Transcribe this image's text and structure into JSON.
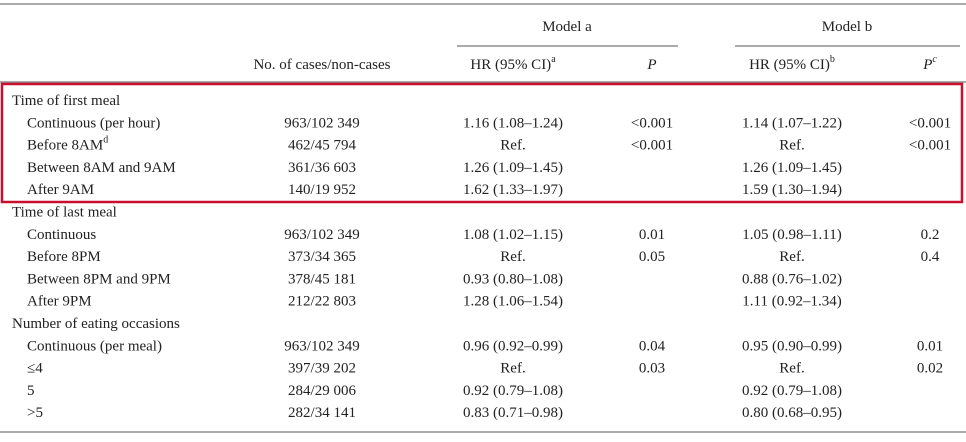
{
  "header": {
    "groups": [
      "Model a",
      "Model b"
    ],
    "columns": [
      {
        "text": "No. of cases/non-cases"
      },
      {
        "text": "HR (95% CI)",
        "sup": "a"
      },
      {
        "text": "P"
      },
      {
        "text": "HR (95% CI)",
        "sup": "b"
      },
      {
        "text": "P",
        "sup": "c"
      }
    ]
  },
  "sections": [
    {
      "label": "Time of first meal",
      "rows": [
        {
          "label": "Continuous (per hour)",
          "cells": [
            "963/102 349",
            "1.16 (1.08–1.24)",
            "<0.001",
            "1.14 (1.07–1.22)",
            "<0.001"
          ]
        },
        {
          "label": "Before 8AM",
          "label_sup": "d",
          "cells": [
            "462/45 794",
            "Ref.",
            "<0.001",
            "Ref.",
            "<0.001"
          ]
        },
        {
          "label": "Between 8AM and 9AM",
          "cells": [
            "361/36 603",
            "1.26 (1.09–1.45)",
            null,
            "1.26 (1.09–1.45)",
            null
          ]
        },
        {
          "label": "After 9AM",
          "cells": [
            "140/19 952",
            "1.62 (1.33–1.97)",
            null,
            "1.59 (1.30–1.94)",
            null
          ]
        }
      ]
    },
    {
      "label": "Time of last meal",
      "rows": [
        {
          "label": "Continuous",
          "cells": [
            "963/102 349",
            "1.08 (1.02–1.15)",
            "0.01",
            "1.05 (0.98–1.11)",
            "0.2"
          ]
        },
        {
          "label": "Before 8PM",
          "cells": [
            "373/34 365",
            "Ref.",
            "0.05",
            "Ref.",
            "0.4"
          ]
        },
        {
          "label": "Between 8PM and 9PM",
          "cells": [
            "378/45 181",
            "0.93 (0.80–1.08)",
            null,
            "0.88 (0.76–1.02)",
            null
          ]
        },
        {
          "label": "After 9PM",
          "cells": [
            "212/22 803",
            "1.28 (1.06–1.54)",
            null,
            "1.11 (0.92–1.34)",
            null
          ]
        }
      ]
    },
    {
      "label": "Number of eating occasions",
      "rows": [
        {
          "label": "Continuous (per meal)",
          "cells": [
            "963/102 349",
            "0.96 (0.92–0.99)",
            "0.04",
            "0.95 (0.90–0.99)",
            "0.01"
          ]
        },
        {
          "label": "≤4",
          "cells": [
            "397/39 202",
            "Ref.",
            "0.03",
            "Ref.",
            "0.02"
          ]
        },
        {
          "label": "5",
          "cells": [
            "284/29 006",
            "0.92 (0.79–1.08)",
            null,
            "0.92 (0.79–1.08)",
            null
          ]
        },
        {
          "label": ">5",
          "cells": [
            "282/34 141",
            "0.83 (0.71–0.98)",
            null,
            "0.80 (0.68–0.95)",
            null
          ]
        }
      ]
    }
  ]
}
